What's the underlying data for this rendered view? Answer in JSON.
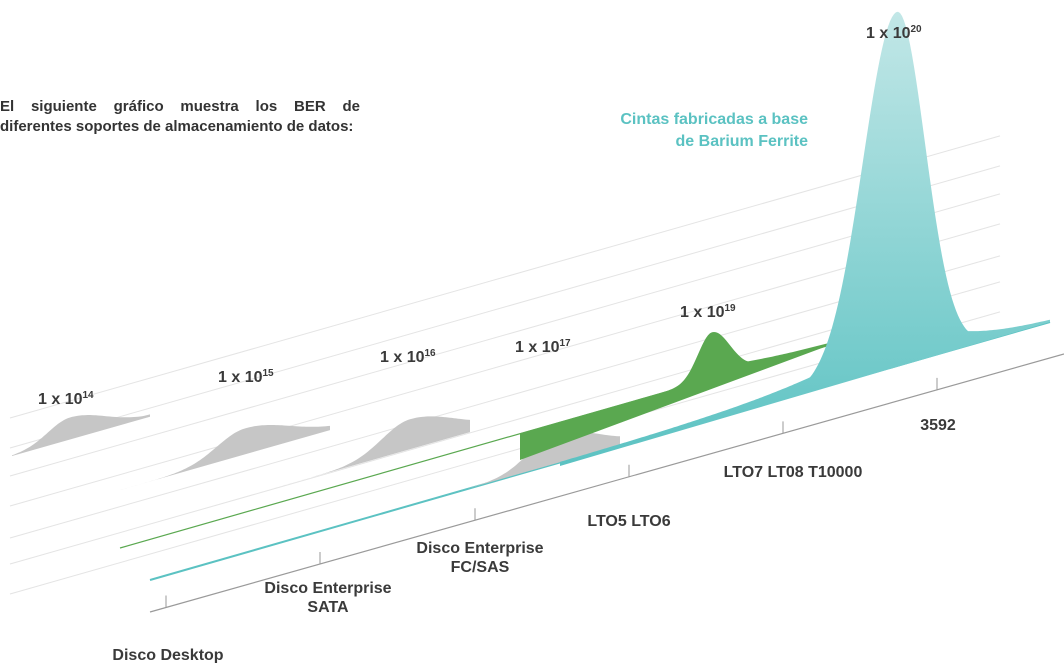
{
  "intro_text": "El siguiente gráfico muestra los BER de diferentes soportes de almacenamiento de datos:",
  "annotation": {
    "line1": "Cintas fabricadas a base",
    "line2": "de Barium Ferrite",
    "color": "#5bc2c2"
  },
  "colors": {
    "gray": "#c6c6c6",
    "green": "#5aa850",
    "teal": "#5bc2c2",
    "teal_light": "#bfe6e6",
    "axis": "#9a9a9a",
    "text": "#333333"
  },
  "chart_data": {
    "type": "area",
    "title": "",
    "xlabel": "",
    "ylabel": "",
    "categories": [
      [
        "Disco Desktop"
      ],
      [
        "Disco Enterprise",
        "SATA"
      ],
      [
        "Disco Enterprise",
        "FC/SAS"
      ],
      [
        "LTO5 LTO6"
      ],
      [
        "LTO7 LT08 T10000"
      ],
      [
        "3592"
      ]
    ],
    "series": [
      {
        "label_base": "1 x 10",
        "exponent": "14",
        "ber_exponent": 14,
        "color": "gray"
      },
      {
        "label_base": "1 x 10",
        "exponent": "15",
        "ber_exponent": 15,
        "color": "gray"
      },
      {
        "label_base": "1 x 10",
        "exponent": "16",
        "ber_exponent": 16,
        "color": "gray"
      },
      {
        "label_base": "1 x 10",
        "exponent": "17",
        "ber_exponent": 17,
        "color": "gray"
      },
      {
        "label_base": "1 x 10",
        "exponent": "19",
        "ber_exponent": 19,
        "color": "green"
      },
      {
        "label_base": "1 x 10",
        "exponent": "20",
        "ber_exponent": 20,
        "color": "teal"
      }
    ]
  }
}
